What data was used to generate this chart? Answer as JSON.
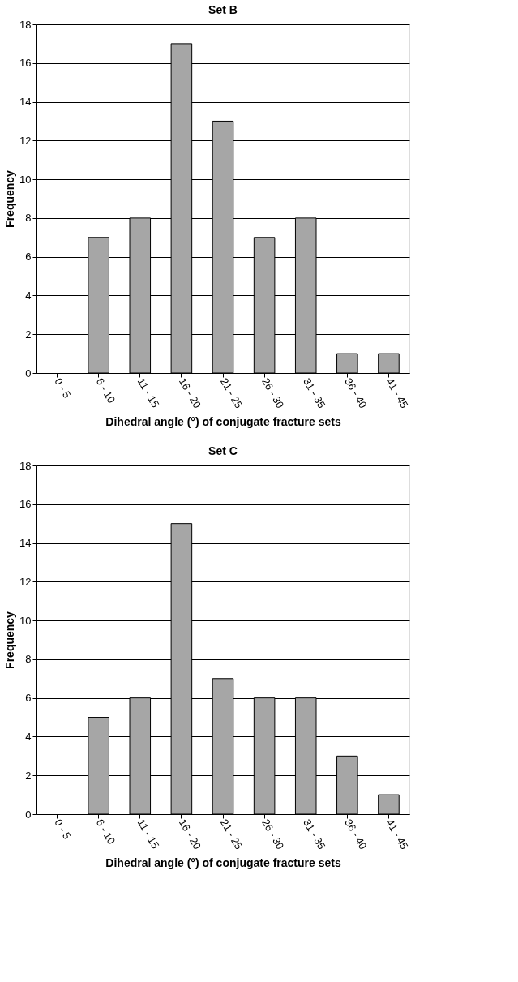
{
  "chart_data": [
    {
      "type": "bar",
      "title": "Set B",
      "xlabel": "Dihedral angle (°) of conjugate fracture sets",
      "ylabel": "Frequency",
      "categories": [
        "0 - 5",
        "6 - 10",
        "11 - 15",
        "16 - 20",
        "21 - 25",
        "26 - 30",
        "31 - 35",
        "36 - 40",
        "41 - 45"
      ],
      "series": [
        {
          "color": "#a6a6a6",
          "values": [
            0,
            7,
            8,
            17,
            13,
            7,
            8,
            1,
            1
          ]
        }
      ],
      "ylim": [
        0,
        18
      ],
      "yticks": [
        0,
        2,
        4,
        6,
        8,
        10,
        12,
        14,
        16,
        18
      ],
      "grid": "y"
    },
    {
      "type": "bar",
      "title": "Set C",
      "xlabel": "Dihedral angle (°) of conjugate fracture sets",
      "ylabel": "Frequency",
      "categories": [
        "0 - 5",
        "6 - 10",
        "11 - 15",
        "16 - 20",
        "21 - 25",
        "26 - 30",
        "31 - 35",
        "36 - 40",
        "41 - 45"
      ],
      "series": [
        {
          "color": "#a6a6a6",
          "values": [
            0,
            5,
            6,
            15,
            7,
            6,
            6,
            3,
            1
          ]
        }
      ],
      "ylim": [
        0,
        18
      ],
      "yticks": [
        0,
        2,
        4,
        6,
        8,
        10,
        12,
        14,
        16,
        18
      ],
      "grid": "y"
    }
  ]
}
